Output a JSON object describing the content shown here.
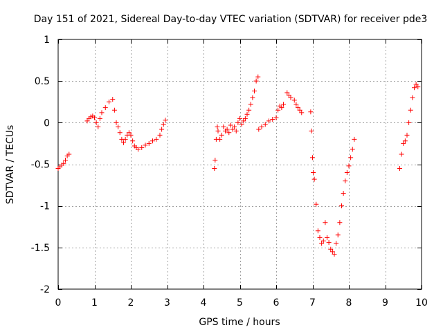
{
  "chart_data": {
    "type": "scatter",
    "title": "Day 151 of 2021, Sidereal Day-to-day VTEC variation (SDTVAR) for receiver pde3",
    "xlabel": "GPS time / hours",
    "ylabel": "SDTVAR / TECUs",
    "xlim": [
      0,
      10
    ],
    "ylim": [
      -2,
      1
    ],
    "xticks": [
      0,
      1,
      2,
      3,
      4,
      5,
      6,
      7,
      8,
      9,
      10
    ],
    "xtick_labels": [
      "0",
      "1",
      "2",
      "3",
      "4",
      "5",
      "6",
      "7",
      "8",
      "9",
      "10"
    ],
    "yticks": [
      1,
      0.5,
      0,
      -0.5,
      -1,
      -1.5,
      -2
    ],
    "ytick_labels": [
      "1",
      "0.5",
      "0",
      "-0.5",
      "-1",
      "-1.5",
      "-2"
    ],
    "grid": true,
    "marker": "+",
    "color": "#ff0000",
    "series": [
      {
        "name": "SDTVAR",
        "points": [
          [
            0.0,
            -0.55
          ],
          [
            0.05,
            -0.53
          ],
          [
            0.1,
            -0.51
          ],
          [
            0.15,
            -0.49
          ],
          [
            0.2,
            -0.45
          ],
          [
            0.25,
            -0.4
          ],
          [
            0.3,
            -0.38
          ],
          [
            0.8,
            0.02
          ],
          [
            0.85,
            0.05
          ],
          [
            0.9,
            0.07
          ],
          [
            0.95,
            0.08
          ],
          [
            1.0,
            0.06
          ],
          [
            1.05,
            0.0
          ],
          [
            1.1,
            -0.05
          ],
          [
            1.15,
            0.05
          ],
          [
            1.2,
            0.12
          ],
          [
            1.3,
            0.18
          ],
          [
            1.4,
            0.25
          ],
          [
            1.5,
            0.28
          ],
          [
            1.55,
            0.15
          ],
          [
            1.6,
            0.0
          ],
          [
            1.65,
            -0.05
          ],
          [
            1.7,
            -0.12
          ],
          [
            1.75,
            -0.2
          ],
          [
            1.8,
            -0.24
          ],
          [
            1.85,
            -0.2
          ],
          [
            1.9,
            -0.15
          ],
          [
            1.95,
            -0.12
          ],
          [
            2.0,
            -0.15
          ],
          [
            2.05,
            -0.22
          ],
          [
            2.1,
            -0.28
          ],
          [
            2.15,
            -0.3
          ],
          [
            2.2,
            -0.32
          ],
          [
            2.3,
            -0.3
          ],
          [
            2.4,
            -0.27
          ],
          [
            2.5,
            -0.25
          ],
          [
            2.6,
            -0.22
          ],
          [
            2.7,
            -0.2
          ],
          [
            2.8,
            -0.15
          ],
          [
            2.85,
            -0.08
          ],
          [
            2.9,
            -0.02
          ],
          [
            2.95,
            0.03
          ],
          [
            4.3,
            -0.55
          ],
          [
            4.32,
            -0.45
          ],
          [
            4.35,
            -0.2
          ],
          [
            4.38,
            -0.05
          ],
          [
            4.4,
            -0.1
          ],
          [
            4.45,
            -0.2
          ],
          [
            4.5,
            -0.15
          ],
          [
            4.55,
            -0.05
          ],
          [
            4.6,
            -0.1
          ],
          [
            4.65,
            -0.08
          ],
          [
            4.7,
            -0.12
          ],
          [
            4.75,
            -0.03
          ],
          [
            4.8,
            -0.08
          ],
          [
            4.85,
            -0.05
          ],
          [
            4.9,
            -0.1
          ],
          [
            4.95,
            0.0
          ],
          [
            5.0,
            0.05
          ],
          [
            5.05,
            -0.02
          ],
          [
            5.1,
            0.02
          ],
          [
            5.15,
            0.05
          ],
          [
            5.2,
            0.1
          ],
          [
            5.25,
            0.15
          ],
          [
            5.3,
            0.22
          ],
          [
            5.35,
            0.3
          ],
          [
            5.4,
            0.38
          ],
          [
            5.45,
            0.5
          ],
          [
            5.5,
            0.55
          ],
          [
            5.52,
            -0.08
          ],
          [
            5.6,
            -0.05
          ],
          [
            5.7,
            -0.02
          ],
          [
            5.8,
            0.02
          ],
          [
            5.9,
            0.04
          ],
          [
            6.0,
            0.06
          ],
          [
            6.05,
            0.15
          ],
          [
            6.1,
            0.2
          ],
          [
            6.15,
            0.18
          ],
          [
            6.2,
            0.22
          ],
          [
            6.3,
            0.36
          ],
          [
            6.35,
            0.33
          ],
          [
            6.4,
            0.3
          ],
          [
            6.5,
            0.27
          ],
          [
            6.55,
            0.22
          ],
          [
            6.6,
            0.18
          ],
          [
            6.65,
            0.15
          ],
          [
            6.7,
            0.12
          ],
          [
            6.95,
            0.13
          ],
          [
            6.97,
            -0.1
          ],
          [
            7.0,
            -0.42
          ],
          [
            7.02,
            -0.6
          ],
          [
            7.05,
            -0.68
          ],
          [
            7.1,
            -0.98
          ],
          [
            7.15,
            -1.3
          ],
          [
            7.2,
            -1.38
          ],
          [
            7.25,
            -1.45
          ],
          [
            7.3,
            -1.42
          ],
          [
            7.35,
            -1.2
          ],
          [
            7.4,
            -1.38
          ],
          [
            7.45,
            -1.44
          ],
          [
            7.5,
            -1.52
          ],
          [
            7.55,
            -1.55
          ],
          [
            7.6,
            -1.58
          ],
          [
            7.65,
            -1.45
          ],
          [
            7.7,
            -1.35
          ],
          [
            7.75,
            -1.2
          ],
          [
            7.8,
            -1.0
          ],
          [
            7.85,
            -0.85
          ],
          [
            7.9,
            -0.7
          ],
          [
            7.95,
            -0.6
          ],
          [
            8.0,
            -0.52
          ],
          [
            8.05,
            -0.42
          ],
          [
            8.1,
            -0.32
          ],
          [
            8.15,
            -0.2
          ],
          [
            9.4,
            -0.55
          ],
          [
            9.45,
            -0.38
          ],
          [
            9.5,
            -0.25
          ],
          [
            9.55,
            -0.22
          ],
          [
            9.6,
            -0.15
          ],
          [
            9.65,
            0.0
          ],
          [
            9.7,
            0.15
          ],
          [
            9.75,
            0.3
          ],
          [
            9.8,
            0.42
          ],
          [
            9.85,
            0.46
          ],
          [
            9.9,
            0.43
          ]
        ]
      }
    ]
  }
}
